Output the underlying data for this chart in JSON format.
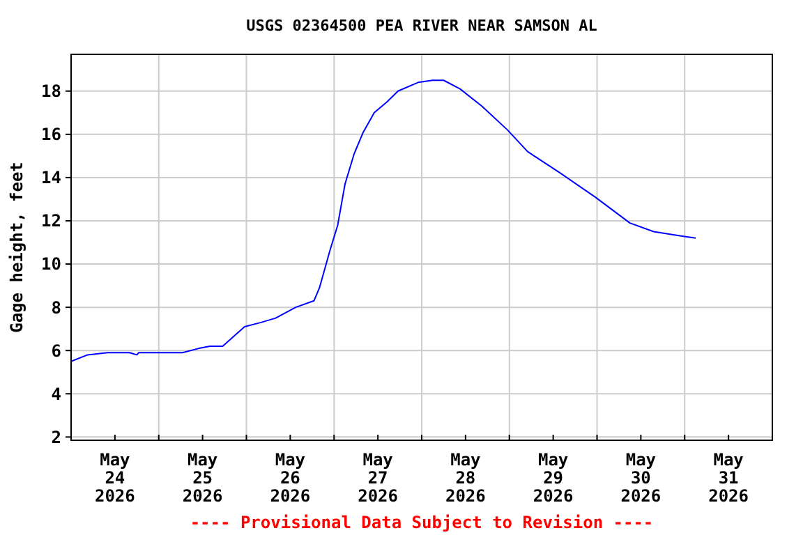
{
  "chart_data": {
    "type": "line",
    "title": "USGS 02364500 PEA RIVER NEAR SAMSON AL",
    "ylabel": "Gage height, feet",
    "annotations": [
      "---- Provisional Data Subject to Revision ----"
    ],
    "x": [
      "2026-05-24T00:00",
      "2026-05-24T04:30",
      "2026-05-24T10:00",
      "2026-05-24T12:00",
      "2026-05-24T16:00",
      "2026-05-24T18:00",
      "2026-05-24T18:30",
      "2026-05-25T06:30",
      "2026-05-25T11:00",
      "2026-05-25T14:00",
      "2026-05-25T17:30",
      "2026-05-25T23:30",
      "2026-05-26T04:00",
      "2026-05-26T08:00",
      "2026-05-26T13:30",
      "2026-05-26T18:30",
      "2026-05-26T20:00",
      "2026-05-26T23:00",
      "2026-05-27T01:00",
      "2026-05-27T03:00",
      "2026-05-27T05:30",
      "2026-05-27T08:00",
      "2026-05-27T11:00",
      "2026-05-27T14:30",
      "2026-05-27T17:30",
      "2026-05-27T23:00",
      "2026-05-28T03:00",
      "2026-05-28T06:00",
      "2026-05-28T10:30",
      "2026-05-28T16:30",
      "2026-05-28T23:30",
      "2026-05-29T05:00",
      "2026-05-29T14:00",
      "2026-05-29T23:30",
      "2026-05-30T09:00",
      "2026-05-30T15:30",
      "2026-05-30T23:00",
      "2026-05-31T03:00"
    ],
    "series": [
      {
        "color": "#0000ff",
        "values": [
          5.5,
          5.8,
          5.9,
          5.9,
          5.9,
          5.8,
          5.9,
          5.9,
          6.1,
          6.2,
          6.2,
          7.1,
          7.3,
          7.5,
          8.0,
          8.3,
          8.9,
          10.7,
          11.8,
          13.7,
          15.1,
          16.1,
          17.0,
          17.5,
          18.0,
          18.4,
          18.5,
          18.5,
          18.1,
          17.3,
          16.2,
          15.2,
          14.2,
          13.1,
          11.9,
          11.5,
          11.3,
          11.2
        ]
      }
    ],
    "xlim": [
      "2026-05-24T00:00",
      "2026-06-01T00:00"
    ],
    "xticks": [
      {
        "value": "2026-05-24T12:00",
        "label": "May\n24\n2026"
      },
      {
        "value": "2026-05-25T12:00",
        "label": "May\n25\n2026"
      },
      {
        "value": "2026-05-26T12:00",
        "label": "May\n26\n2026"
      },
      {
        "value": "2026-05-27T12:00",
        "label": "May\n27\n2026"
      },
      {
        "value": "2026-05-28T12:00",
        "label": "May\n28\n2026"
      },
      {
        "value": "2026-05-29T12:00",
        "label": "May\n29\n2026"
      },
      {
        "value": "2026-05-30T12:00",
        "label": "May\n30\n2026"
      },
      {
        "value": "2026-05-31T12:00",
        "label": "May\n31\n2026"
      },
      {
        "value": "2026-05-25T00:00",
        "label": null
      },
      {
        "value": "2026-05-26T00:00",
        "label": null
      },
      {
        "value": "2026-05-27T00:00",
        "label": null
      },
      {
        "value": "2026-05-28T00:00",
        "label": null
      },
      {
        "value": "2026-05-29T00:00",
        "label": null
      },
      {
        "value": "2026-05-30T00:00",
        "label": null
      },
      {
        "value": "2026-05-31T00:00",
        "label": null
      }
    ],
    "ylim": [
      1.85,
      19.7
    ],
    "yticks": [
      2,
      4,
      6,
      8,
      10,
      12,
      14,
      16,
      18
    ],
    "grid": true,
    "marker": "none",
    "line_style": "solid"
  }
}
